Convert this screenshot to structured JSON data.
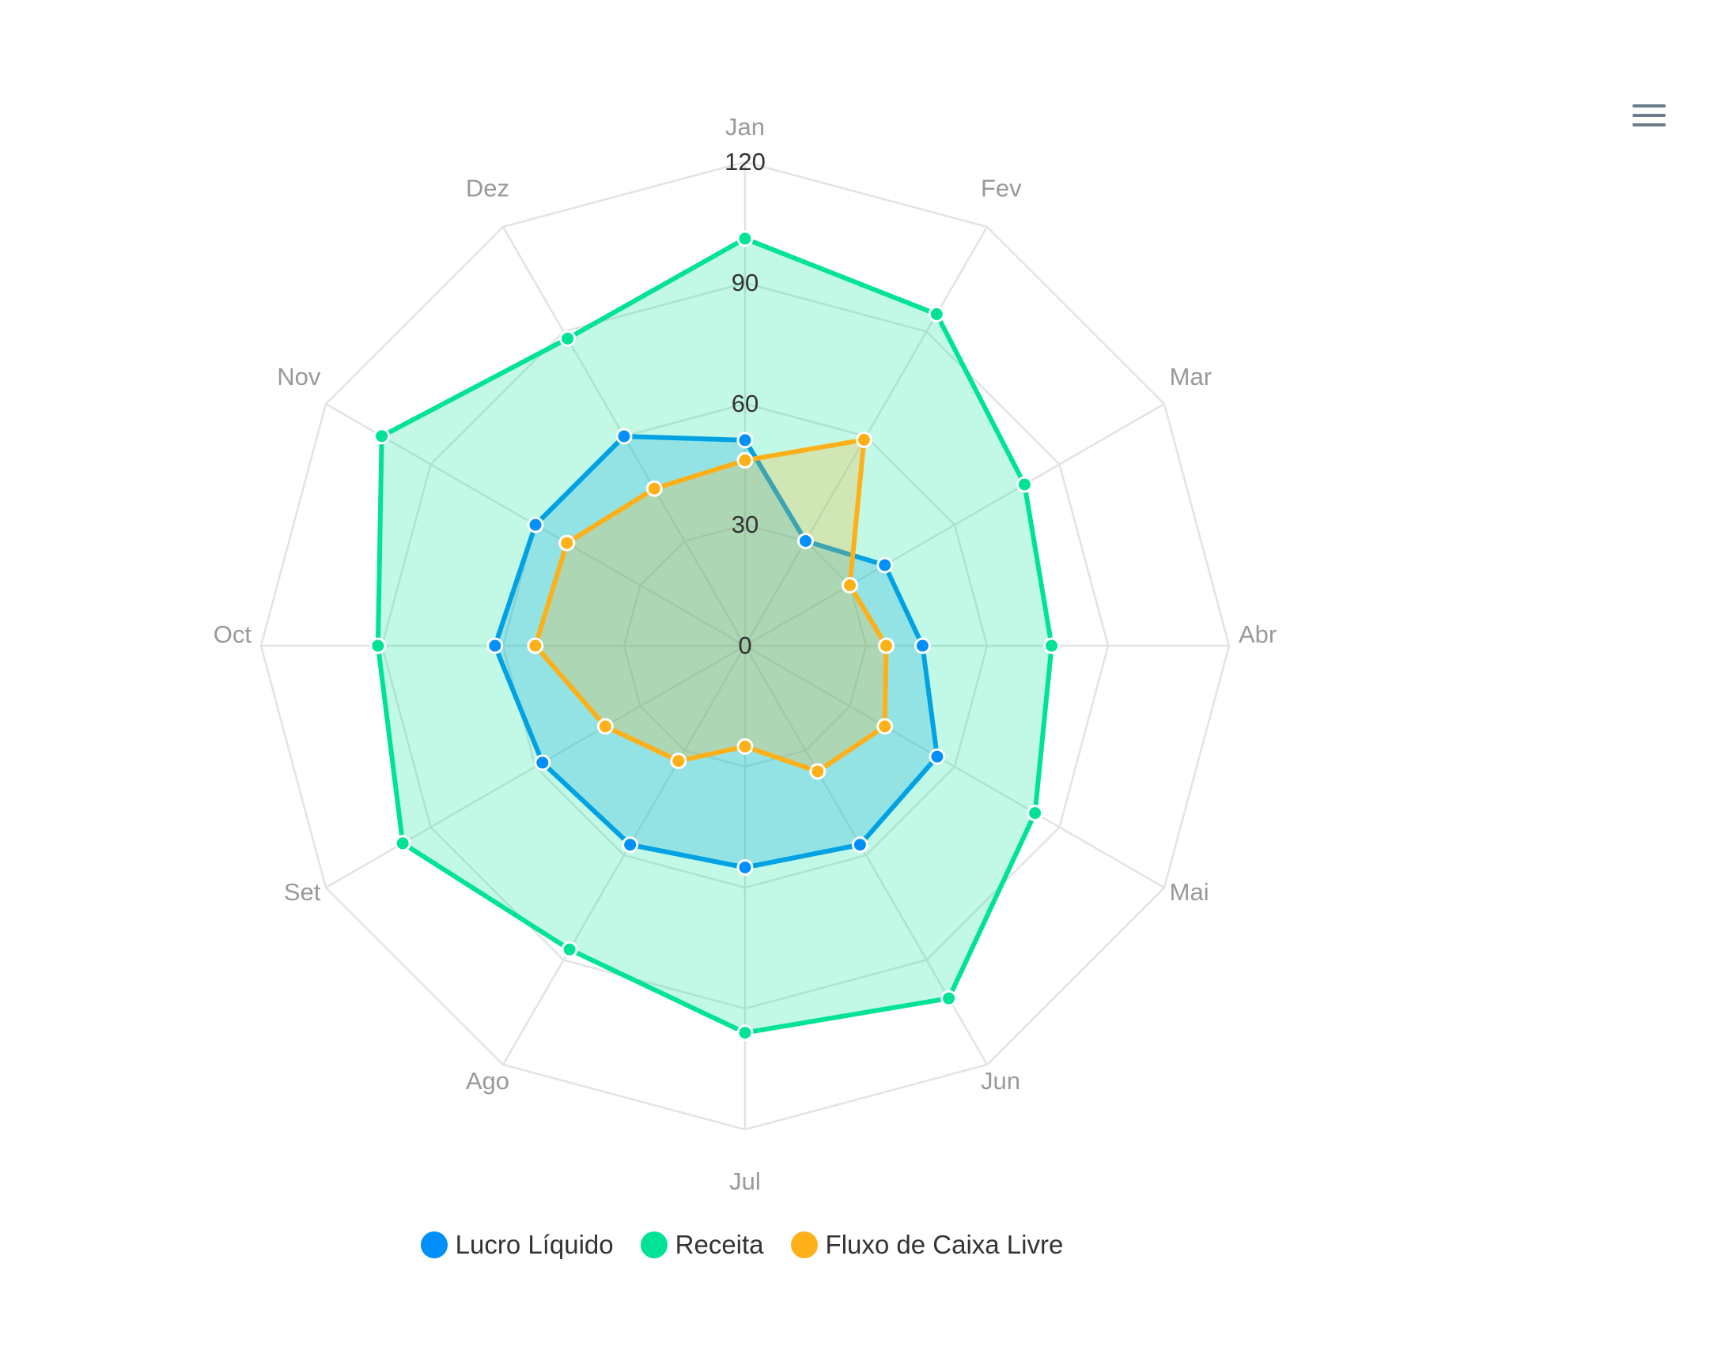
{
  "toolbar": {
    "menu_icon": "hamburger-menu-icon"
  },
  "chart_data": {
    "type": "radar",
    "title": "",
    "categories": [
      "Jan",
      "Fev",
      "Mar",
      "Abr",
      "Mai",
      "Jun",
      "Jul",
      "Ago",
      "Set",
      "Oct",
      "Nov",
      "Dez"
    ],
    "radial_axis": {
      "min": 0,
      "max": 120,
      "ticks": [
        "0",
        "30",
        "60",
        "90",
        "120"
      ],
      "grid": true
    },
    "series": [
      {
        "name": "Lucro Líquido",
        "color": "#008ffb",
        "values": [
          51,
          30,
          40,
          44,
          55,
          57,
          55,
          57,
          58,
          62,
          60,
          60
        ]
      },
      {
        "name": "Receita",
        "color": "#00e396",
        "values": [
          101,
          95,
          80,
          76,
          83,
          101,
          96,
          87,
          98,
          91,
          104,
          88
        ]
      },
      {
        "name": "Fluxo de Caixa Livre",
        "color": "#feb019",
        "values": [
          46,
          59,
          30,
          35,
          40,
          36,
          25,
          33,
          40,
          52,
          51,
          45
        ]
      }
    ],
    "legend": {
      "position": "bottom",
      "items": [
        "Lucro Líquido",
        "Receita",
        "Fluxo de Caixa Livre"
      ]
    }
  }
}
